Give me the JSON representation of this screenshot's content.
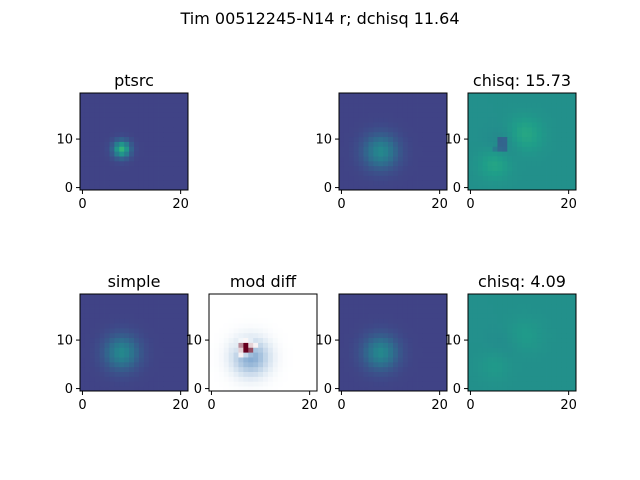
{
  "chart_data": {
    "type": "heatmap",
    "title": "Tim 00512245-N14 r; dchisq 11.64",
    "colormap_default": "viridis",
    "xlim": [
      -0.5,
      21.5
    ],
    "ylim": [
      -0.5,
      19.5
    ],
    "xticks": [
      0,
      20
    ],
    "yticks": [
      0,
      10
    ],
    "panels": [
      {
        "id": "ptsrc",
        "title": "ptsrc",
        "row": 0,
        "col": 0,
        "kind": "gauss",
        "cx": 8,
        "cy": 8,
        "sigma": 1.2,
        "amp": 1.0
      },
      {
        "id": "row0-model",
        "title": "",
        "row": 0,
        "col": 2,
        "kind": "gauss",
        "cx": 8,
        "cy": 7.5,
        "sigma": 2.4,
        "amp": 0.6
      },
      {
        "id": "chisq-top",
        "title": "chisq: 15.73",
        "row": 0,
        "col": 3,
        "kind": "resid",
        "value": 15.73
      },
      {
        "id": "simple",
        "title": "simple",
        "row": 1,
        "col": 0,
        "kind": "gauss",
        "cx": 8,
        "cy": 7.5,
        "sigma": 2.4,
        "amp": 0.6
      },
      {
        "id": "mod-diff",
        "title": "mod diff",
        "row": 1,
        "col": 1,
        "kind": "diff"
      },
      {
        "id": "row1-model",
        "title": "",
        "row": 1,
        "col": 2,
        "kind": "gauss",
        "cx": 8,
        "cy": 7.5,
        "sigma": 2.4,
        "amp": 0.6
      },
      {
        "id": "chisq-bottom",
        "title": "chisq: 4.09",
        "row": 1,
        "col": 3,
        "kind": "resid",
        "value": 4.09
      }
    ]
  }
}
